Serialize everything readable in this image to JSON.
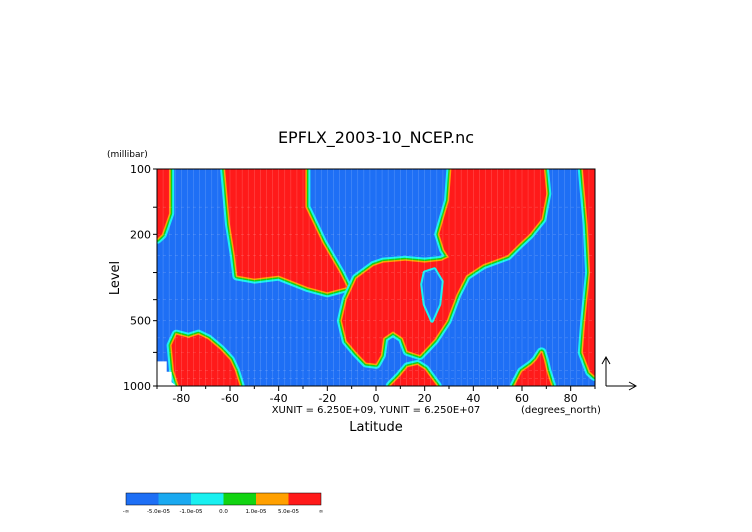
{
  "chart_data": {
    "type": "heatmap",
    "title": "EPFLX_2003-10_NCEP.nc",
    "xlabel": "Latitude",
    "ylabel": "Level",
    "y_unit_label": "(millibar)",
    "x_unit_label": "(degrees_north)",
    "scale_note": "XUNIT = 6.250E+09, YUNIT = 6.250E+07",
    "x_range": [
      -90,
      90
    ],
    "y_range": [
      1000,
      100
    ],
    "y_scale": "log",
    "x_ticks": [
      "-80",
      "-60",
      "-40",
      "-20",
      "0",
      "20",
      "40",
      "60",
      "80"
    ],
    "y_ticks": [
      "100",
      "200",
      "500",
      "1000"
    ],
    "legend": {
      "placement": "bottom-left",
      "colors": [
        "#1e6ff5",
        "#1aa9f0",
        "#19f0f0",
        "#12d412",
        "#ffa000",
        "#ff1a1a"
      ],
      "labels": [
        "-∞",
        "-5.0e-05",
        "-1.0e-05",
        "0.0",
        "1.0e-05",
        "5.0e-05",
        "∞"
      ]
    },
    "red_regions": [
      {
        "name": "left-high",
        "points": [
          [
            -90,
            100
          ],
          [
            -85,
            100
          ],
          [
            -85,
            160
          ],
          [
            -88,
            200
          ],
          [
            -90,
            210
          ]
        ]
      },
      {
        "name": "central-sh",
        "points": [
          [
            -62,
            100
          ],
          [
            -29,
            100
          ],
          [
            -29,
            150
          ],
          [
            -22,
            220
          ],
          [
            -15,
            300
          ],
          [
            -12,
            350
          ],
          [
            -20,
            370
          ],
          [
            -28,
            350
          ],
          [
            -40,
            310
          ],
          [
            -50,
            320
          ],
          [
            -57,
            310
          ],
          [
            -58,
            250
          ],
          [
            -60,
            180
          ]
        ]
      },
      {
        "name": "lower-sh",
        "points": [
          [
            -84,
            650
          ],
          [
            -82,
            580
          ],
          [
            -77,
            600
          ],
          [
            -73,
            580
          ],
          [
            -69,
            610
          ],
          [
            -64,
            680
          ],
          [
            -60,
            760
          ],
          [
            -58,
            850
          ],
          [
            -56,
            1000
          ],
          [
            -81,
            1000
          ],
          [
            -83,
            850
          ]
        ]
      },
      {
        "name": "nh-main",
        "points": [
          [
            -14,
            500
          ],
          [
            -12,
            400
          ],
          [
            -8,
            320
          ],
          [
            -1,
            280
          ],
          [
            3,
            270
          ],
          [
            12,
            265
          ],
          [
            20,
            270
          ],
          [
            27,
            265
          ],
          [
            30,
            255
          ],
          [
            28,
            235
          ],
          [
            26,
            200
          ],
          [
            30,
            140
          ],
          [
            31,
            100
          ],
          [
            69,
            100
          ],
          [
            70,
            130
          ],
          [
            68,
            170
          ],
          [
            63,
            200
          ],
          [
            59,
            220
          ],
          [
            54,
            250
          ],
          [
            44,
            275
          ],
          [
            37,
            310
          ],
          [
            33,
            380
          ],
          [
            29,
            500
          ],
          [
            24,
            610
          ],
          [
            18,
            720
          ],
          [
            13,
            690
          ],
          [
            11,
            600
          ],
          [
            7,
            560
          ],
          [
            3,
            600
          ],
          [
            2,
            720
          ],
          [
            0,
            790
          ],
          [
            -4,
            780
          ],
          [
            -8,
            700
          ],
          [
            -12,
            620
          ]
        ]
      },
      {
        "name": "nh-right-low",
        "points": [
          [
            57,
            1000
          ],
          [
            60,
            860
          ],
          [
            64,
            800
          ],
          [
            66,
            760
          ],
          [
            68,
            700
          ],
          [
            69,
            760
          ],
          [
            70,
            850
          ],
          [
            72,
            1000
          ]
        ]
      },
      {
        "name": "nh-right-edge",
        "points": [
          [
            85,
            100
          ],
          [
            90,
            100
          ],
          [
            90,
            900
          ],
          [
            88,
            860
          ],
          [
            85,
            700
          ],
          [
            86,
            500
          ],
          [
            88,
            300
          ],
          [
            87,
            180
          ]
        ]
      },
      {
        "name": "nh-mid-low",
        "points": [
          [
            10,
            900
          ],
          [
            13,
            820
          ],
          [
            17,
            800
          ],
          [
            20,
            840
          ],
          [
            22,
            900
          ],
          [
            25,
            1000
          ],
          [
            6,
            1000
          ]
        ]
      }
    ],
    "white_regions": [
      {
        "name": "below-surface",
        "points": [
          [
            -90,
            770
          ],
          [
            -86,
            770
          ],
          [
            -86,
            860
          ],
          [
            -84,
            860
          ],
          [
            -84,
            960
          ],
          [
            -82,
            1000
          ],
          [
            -90,
            1000
          ]
        ]
      }
    ],
    "blue_pockets": [
      {
        "name": "nh-pocket",
        "points": [
          [
            20,
            300
          ],
          [
            24,
            290
          ],
          [
            27,
            330
          ],
          [
            26,
            420
          ],
          [
            23,
            500
          ],
          [
            20,
            420
          ],
          [
            19,
            340
          ]
        ]
      }
    ]
  }
}
